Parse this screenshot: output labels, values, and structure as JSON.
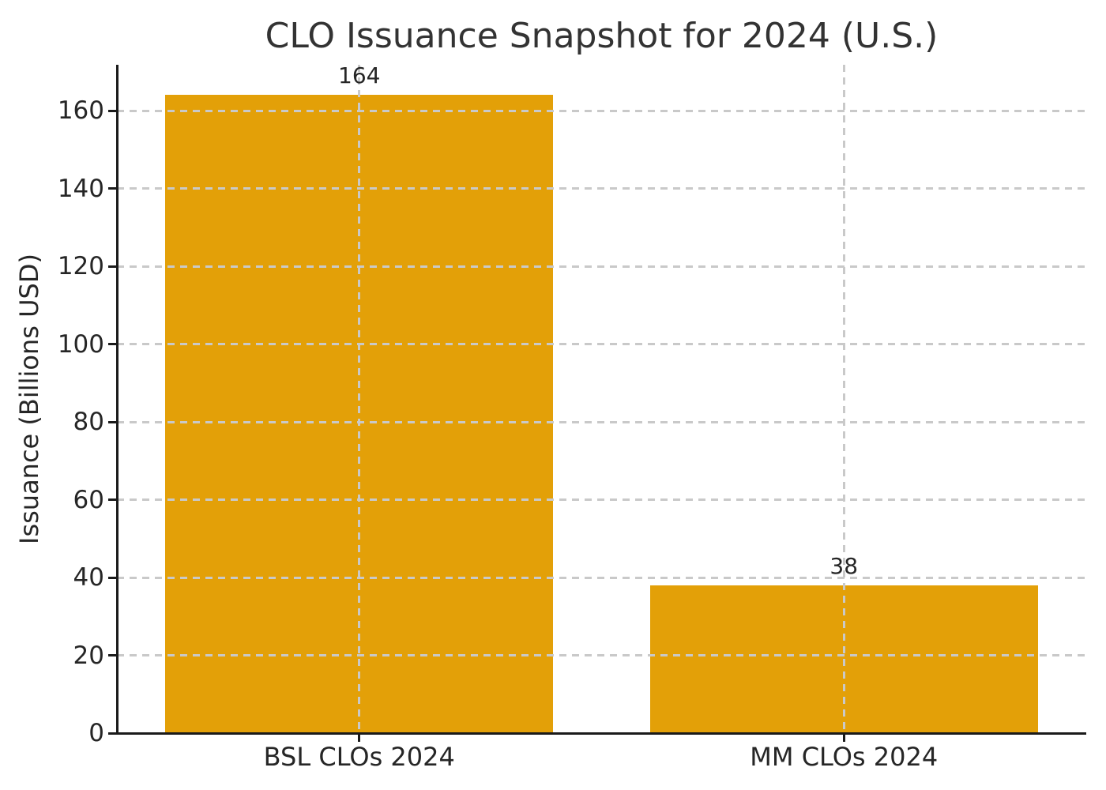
{
  "chart_data": {
    "type": "bar",
    "title": "CLO Issuance Snapshot for 2024 (U.S.)",
    "xlabel": "",
    "ylabel": "Issuance (Billions USD)",
    "categories": [
      "BSL CLOs 2024",
      "MM CLOs 2024"
    ],
    "values": [
      164,
      38
    ],
    "value_labels": [
      "164",
      "38"
    ],
    "yticks": [
      0,
      20,
      40,
      60,
      80,
      100,
      120,
      140,
      160
    ],
    "ylim": [
      0,
      171.8
    ],
    "bar_width_fraction": 0.8,
    "grid": {
      "visible": true,
      "style": "dashed",
      "axes": "both",
      "drawn_over_bars": true
    },
    "legend": "none",
    "colors": {
      "bar": "#E3A008",
      "grid": "#C9C9C9",
      "spine": "#1A1A1A",
      "tick_label": "#262626",
      "title": "#333333",
      "background": "#FFFFFF"
    }
  }
}
